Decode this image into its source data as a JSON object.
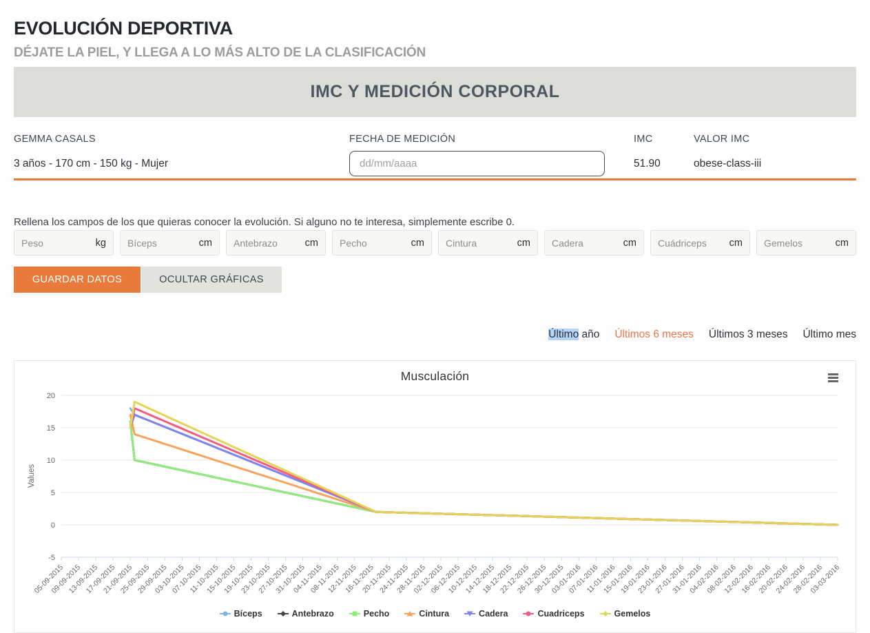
{
  "page": {
    "title": "EVOLUCIÓN DEPORTIVA",
    "subtitle": "DÉJATE LA PIEL, Y LLEGA A LO MÁS ALTO DE LA CLASIFICACIÓN",
    "section_banner": "IMC Y MEDICIÓN CORPORAL"
  },
  "user": {
    "name": "GEMMA CASALS",
    "summary": "3 años - 170 cm - 150 kg - Mujer"
  },
  "measurement": {
    "date_label": "FECHA DE MEDICIÓN",
    "date_placeholder": "dd/mm/aaaa",
    "date_value": "",
    "imc_label": "IMC",
    "imc_value": "51.90",
    "valor_imc_label": "VALOR IMC",
    "valor_imc_value": "obese-class-iii"
  },
  "instructions": "Rellena los campos de los que quieras conocer la evolución. Si alguno no te interesa, simplemente escribe 0.",
  "fields": [
    {
      "placeholder": "Peso",
      "unit": "kg",
      "value": ""
    },
    {
      "placeholder": "Bíceps",
      "unit": "cm",
      "value": ""
    },
    {
      "placeholder": "Antebrazo",
      "unit": "cm",
      "value": ""
    },
    {
      "placeholder": "Pecho",
      "unit": "cm",
      "value": ""
    },
    {
      "placeholder": "Cintura",
      "unit": "cm",
      "value": ""
    },
    {
      "placeholder": "Cadera",
      "unit": "cm",
      "value": ""
    },
    {
      "placeholder": "Cuádriceps",
      "unit": "cm",
      "value": ""
    },
    {
      "placeholder": "Gemelos",
      "unit": "cm",
      "value": ""
    }
  ],
  "buttons": {
    "save": "GUARDAR DATOS",
    "toggle_charts": "OCULTAR GRÁFICAS"
  },
  "filters": {
    "items": [
      {
        "label": "Último año",
        "highlighted_text": "Último",
        "color": "#2d2d33"
      },
      {
        "label": "Últimos 6 meses",
        "color": "#e8764a"
      },
      {
        "label": "Últimos 3 meses",
        "color": "#2d2d33"
      },
      {
        "label": "Último mes",
        "color": "#2d2d33"
      }
    ]
  },
  "colors": {
    "accent_orange": "#e87a3b",
    "active_link_orange": "#e8764a",
    "banner_bg": "#dcdcd9",
    "selection_blue": "#b3d4fc",
    "grid_line": "#e6e6e6",
    "axis_line": "#ccd6eb",
    "axis_text": "#666666"
  },
  "chart_data": {
    "type": "line",
    "title": "Musculación",
    "xlabel": "",
    "ylabel": "Values",
    "ylim": [
      -5,
      20
    ],
    "yticks": [
      -5,
      0,
      5,
      10,
      15,
      20
    ],
    "grid": true,
    "legend_position": "bottom",
    "x_total_days": 180,
    "x_labels": [
      "05-09-2015",
      "09-09-2015",
      "13-09-2015",
      "17-09-2015",
      "21-09-2015",
      "25-09-2015",
      "29-09-2015",
      "03-10-2015",
      "07-10-2015",
      "11-10-2015",
      "15-10-2015",
      "19-10-2015",
      "23-10-2015",
      "27-10-2015",
      "31-10-2015",
      "04-11-2015",
      "08-11-2015",
      "12-11-2015",
      "16-11-2015",
      "20-11-2015",
      "24-11-2015",
      "28-11-2015",
      "02-12-2015",
      "06-12-2015",
      "10-12-2015",
      "14-12-2015",
      "18-12-2015",
      "22-12-2015",
      "26-12-2015",
      "30-12-2015",
      "03-01-2016",
      "07-01-2016",
      "11-01-2016",
      "15-01-2016",
      "19-01-2016",
      "23-01-2016",
      "27-01-2016",
      "31-01-2016",
      "04-02-2016",
      "08-02-2016",
      "12-02-2016",
      "16-02-2016",
      "20-02-2016",
      "24-02-2016",
      "28-02-2016",
      "03-03-2016"
    ],
    "series": [
      {
        "name": "Bíceps",
        "color": "#7cb5ec",
        "symbol": "circle",
        "points": [
          [
            16,
            18
          ],
          [
            17,
            17
          ],
          [
            73,
            2
          ],
          [
            180,
            0
          ]
        ]
      },
      {
        "name": "Antebrazo",
        "color": "#434348",
        "symbol": "diamond",
        "points": [
          [
            16,
            16
          ],
          [
            17,
            10
          ],
          [
            73,
            2
          ],
          [
            180,
            0
          ]
        ]
      },
      {
        "name": "Pecho",
        "color": "#90ed7d",
        "symbol": "square",
        "points": [
          [
            16,
            16
          ],
          [
            17,
            10
          ],
          [
            73,
            2
          ],
          [
            180,
            0
          ]
        ]
      },
      {
        "name": "Cintura",
        "color": "#f7a35c",
        "symbol": "triangle",
        "points": [
          [
            16,
            17
          ],
          [
            17,
            14
          ],
          [
            73,
            2
          ],
          [
            180,
            0
          ]
        ]
      },
      {
        "name": "Cadera",
        "color": "#8085e9",
        "symbol": "triangle-down",
        "points": [
          [
            16,
            15
          ],
          [
            17,
            17
          ],
          [
            73,
            2
          ],
          [
            180,
            0
          ]
        ]
      },
      {
        "name": "Cuadriceps",
        "color": "#f15c80",
        "symbol": "circle",
        "points": [
          [
            16,
            15
          ],
          [
            17,
            18
          ],
          [
            73,
            2
          ],
          [
            180,
            0
          ]
        ]
      },
      {
        "name": "Gemelos",
        "color": "#e4d354",
        "symbol": "diamond",
        "points": [
          [
            16,
            15
          ],
          [
            17,
            19
          ],
          [
            73,
            2
          ],
          [
            180,
            0
          ]
        ]
      }
    ]
  }
}
